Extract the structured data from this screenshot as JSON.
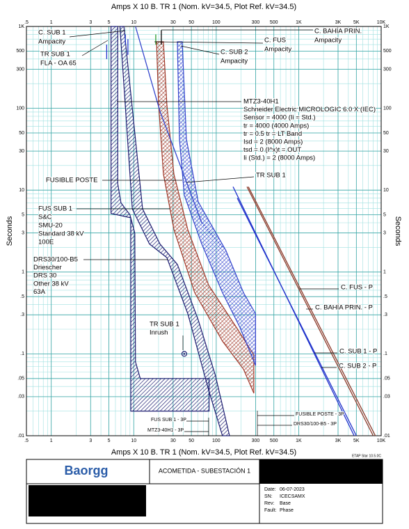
{
  "chart_data": {
    "type": "line",
    "title": "Amps  X  10   B. TR 1 (Nom. kV=34.5, Plot Ref. kV=34.5)",
    "ylabel": "Seconds",
    "xlog": true,
    "ylog": true,
    "grid": true,
    "minor_grid": true,
    "xlim": [
      0.5,
      10000
    ],
    "ylim": [
      0.01,
      1000
    ],
    "xticks": [
      {
        "value": 0.5,
        "label": ".5"
      },
      1,
      3,
      5,
      10,
      30,
      50,
      100,
      300,
      500,
      {
        "value": 1000,
        "label": "1K"
      },
      {
        "value": 3000,
        "label": "3K"
      },
      {
        "value": 5000,
        "label": "5K"
      },
      {
        "value": 10000,
        "label": "10K"
      }
    ],
    "yticks": [
      {
        "value": 0.01,
        "label": ".01"
      },
      {
        "value": 0.03,
        "label": ".03"
      },
      {
        "value": 0.05,
        "label": ".05"
      },
      {
        "value": 0.1,
        "label": ".1"
      },
      {
        "value": 0.3,
        "label": ".3"
      },
      {
        "value": 0.5,
        "label": ".5"
      },
      1,
      3,
      5,
      10,
      30,
      50,
      100,
      300,
      500,
      {
        "value": 1000,
        "label": "1K"
      }
    ],
    "series": [
      {
        "kind": "band",
        "color": "#1c1c70",
        "hatch": "diag",
        "x": [
          5.3,
          5.3,
          9.2,
          9.2,
          82,
          82,
          12,
          10.5,
          10.3,
          9,
          7,
          6.4,
          6.4
        ],
        "y": [
          1000,
          5.2,
          4.6,
          0.02,
          0.02,
          0.05,
          0.05,
          0.08,
          3,
          5,
          7,
          12,
          1000
        ]
      },
      {
        "kind": "band",
        "color": "#1c1c70",
        "hatch": "diag",
        "x": [
          6.8,
          9.6,
          15.5,
          25.2,
          45.2,
          81,
          119,
          145,
          98,
          60.5,
          33.8,
          20.8,
          12.8,
          7.6
        ],
        "y": [
          1000,
          5.9,
          2.2,
          1.5,
          0.31,
          0.036,
          0.01,
          0.01,
          0.054,
          0.26,
          1.24,
          2.2,
          5.9,
          1000
        ]
      },
      {
        "kind": "band",
        "color": "#a0392a",
        "hatch": "cross",
        "x": [
          18.9,
          20,
          22.9,
          30.7,
          54.8,
          119,
          214,
          286,
          286,
          176,
          81,
          45.2,
          30.7,
          25.2,
          22.9
        ],
        "y": [
          650,
          112,
          15.7,
          3.3,
          0.56,
          0.143,
          0.065,
          0.033,
          0.097,
          0.21,
          0.69,
          3.3,
          15.7,
          112,
          650
        ]
      },
      {
        "kind": "band",
        "color": "#3344cc",
        "hatch": "cross",
        "x": [
          33.8,
          35.8,
          41,
          66.7,
          119,
          194,
          300,
          300,
          214,
          131,
          60.5,
          43.5,
          38.7
        ],
        "y": [
          650,
          42,
          8.7,
          2.2,
          0.56,
          0.21,
          0.072,
          0.31,
          0.56,
          1.83,
          7.2,
          42,
          650
        ]
      },
      {
        "kind": "line",
        "color": "#3344cc",
        "x": [
          10.5,
          20.8,
          66.7
        ],
        "y": [
          1000,
          92,
          4.0
        ]
      },
      {
        "kind": "line",
        "color": "#3344cc",
        "dash": true,
        "x": [
          66.7,
          119
        ],
        "y": [
          4.0,
          2.0
        ]
      },
      {
        "kind": "line",
        "color": "#8b3a2a",
        "x": [
          236,
          8000
        ],
        "y": [
          11,
          0.01
        ]
      },
      {
        "kind": "line",
        "color": "#8b3a2a",
        "x": [
          245,
          8500
        ],
        "y": [
          11,
          0.01
        ]
      },
      {
        "kind": "line",
        "color": "#2233cc",
        "x": [
          160,
          4700
        ],
        "y": [
          11,
          0.01
        ]
      },
      {
        "kind": "line",
        "color": "#2233cc",
        "x": [
          180,
          5000
        ],
        "y": [
          8,
          0.01
        ]
      },
      {
        "kind": "line",
        "color": "#2233cc",
        "x": [
          4.7,
          4.7
        ],
        "y": [
          600,
          400
        ]
      },
      {
        "kind": "line",
        "color": "#2233cc",
        "x": [
          7.9,
          7.9
        ],
        "y": [
          800,
          600
        ]
      },
      {
        "kind": "line",
        "color": "#2233cc",
        "x": [
          8.5,
          8.5
        ],
        "y": [
          700,
          450
        ]
      },
      {
        "kind": "line",
        "color": "#2a9a2a",
        "x": [
          18.5,
          18.5
        ],
        "y": [
          800,
          600
        ]
      },
      {
        "kind": "line",
        "color": "#000000",
        "x": [
          21.6,
          21.6
        ],
        "y": [
          900,
          600
        ]
      },
      {
        "kind": "point",
        "color": "#1c1c70",
        "x": [
          41
        ],
        "y": [
          0.1
        ]
      }
    ],
    "annotations": [
      [
        "C. SUB 1",
        "Ampacity"
      ],
      [
        "TR SUB 1",
        "FLA - OA 65"
      ],
      [
        "C. BAHÍA PRIN.",
        "Ampacity"
      ],
      [
        "C. FUS",
        "Ampacity"
      ],
      [
        "C. SUB 2",
        "Ampacity"
      ],
      [
        "MTZ3-40H1",
        "Schneider Electric  MICROLOGIC 6.0 X (IEC)",
        "Sensor = 4000 (Ii =  Std.)",
        "tr = 4000 (4000 Amps)",
        "tr = 0.5  tr = LT Band",
        "Isd = 2 (8000 Amps)",
        "tsd = 0  (I^x)t = OUT",
        "Ii (Std.)  = 2 (8000 Amps)"
      ],
      [
        "FUSIBLE POSTE"
      ],
      [
        "TR SUB 1"
      ],
      [
        "FUS SUB 1",
        "S&C",
        "SMU-20",
        "Standard  38 kV",
        "100E"
      ],
      [
        "DRS30/100-B5",
        "Driescher",
        "DRS 30",
        "Other  38 kV",
        "63A"
      ],
      [
        "C. FUS - P"
      ],
      [
        "C. BAHÍA PRIN. - P"
      ],
      [
        "TR SUB 1",
        "Inrush"
      ],
      [
        "C. SUB 1 - P"
      ],
      [
        "C. SUB 2 - P"
      ],
      [
        "FUSIBLE POSTE - 3P"
      ],
      [
        "DRS30/100-B5 - 3P"
      ],
      [
        "FUS SUB 1 - 3P"
      ],
      [
        "MTZ3-40H1 - 3P"
      ]
    ]
  },
  "title_block": {
    "logo": "Baorgg",
    "project": "ACOMETIDA - SUBESTACIÓN 1",
    "software": "ETAP Star 10.5.0C",
    "fields": [
      {
        "label": "Date:",
        "value": "06-07-2023"
      },
      {
        "label": "SN:",
        "value": "ICECSAMX"
      },
      {
        "label": "Rev:",
        "value": "Base"
      },
      {
        "label": "Fault:",
        "value": "Phase"
      }
    ]
  }
}
